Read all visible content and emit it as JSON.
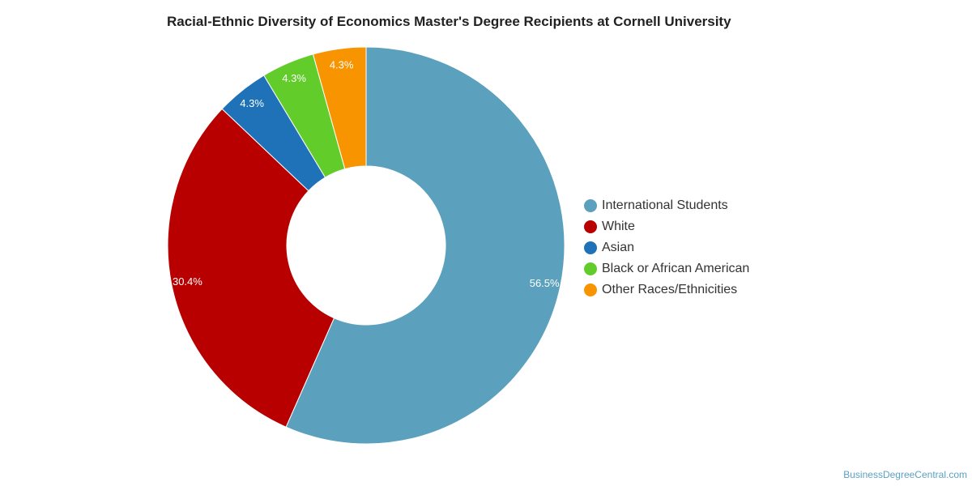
{
  "colors": {
    "title": "#222222",
    "credit": "#5ba0c3",
    "slice_label": "#ffffff",
    "slice_border": "#ffffff"
  },
  "chart_data": {
    "type": "pie",
    "title": "Racial-Ethnic Diversity of Economics Master's Degree Recipients at Cornell University",
    "donut": true,
    "legend_position": "right",
    "categories": [
      "International Students",
      "White",
      "Asian",
      "Black or African American",
      "Other Races/Ethnicities"
    ],
    "values": [
      56.5,
      30.4,
      4.3,
      4.3,
      4.3
    ],
    "value_labels": [
      "56.5%",
      "30.4%",
      "4.3%",
      "4.3%",
      "4.3%"
    ],
    "colors": [
      "#5ba0bd",
      "#b80000",
      "#1f72b8",
      "#62cd2a",
      "#f89400"
    ]
  },
  "credit": "BusinessDegreeCentral.com"
}
